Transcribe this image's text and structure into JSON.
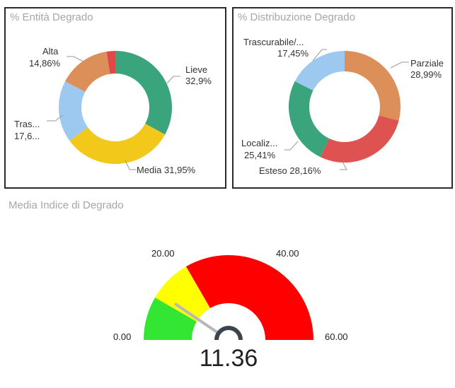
{
  "chart_data": [
    {
      "type": "pie",
      "variant": "donut",
      "title": "% Entità Degrado",
      "slices": [
        {
          "name": "Lieve",
          "value": 32.9,
          "label": "Lieve",
          "value_label": "32,9%",
          "color": "#3aa57c"
        },
        {
          "name": "Media",
          "value": 31.95,
          "label": "Media 31,95%",
          "value_label": "",
          "color": "#f2c81b"
        },
        {
          "name": "Trascurabile",
          "value": 17.6,
          "label": "Tras...",
          "value_label": "17,6...",
          "color": "#9dc9f0"
        },
        {
          "name": "Alta",
          "value": 14.86,
          "label": "Alta",
          "value_label": "14,86%",
          "color": "#dd8f5a"
        },
        {
          "name": "",
          "value": 2.49,
          "label": "",
          "value_label": "",
          "color": "#e0484a"
        }
      ]
    },
    {
      "type": "pie",
      "variant": "donut",
      "title": "% Distribuzione Degrado",
      "slices": [
        {
          "name": "Parziale",
          "value": 28.99,
          "label": "Parziale",
          "value_label": "28,99%",
          "color": "#dd8f5a"
        },
        {
          "name": "Esteso",
          "value": 28.16,
          "label": "Esteso 28,16%",
          "value_label": "",
          "color": "#df5252"
        },
        {
          "name": "Localiz...",
          "value": 25.41,
          "label": "Localiz...",
          "value_label": "25,41%",
          "color": "#3aa57c"
        },
        {
          "name": "Trascurabile/...",
          "value": 17.45,
          "label": "Trascurabile/...",
          "value_label": "17,45%",
          "color": "#9dc9f0"
        }
      ]
    },
    {
      "type": "gauge",
      "title": "Media Indice di Degrado",
      "min": 0,
      "max": 60,
      "min_label": "0.00",
      "max_label": "60.00",
      "tick_labels": [
        {
          "value": 20,
          "label": "20.00"
        },
        {
          "value": 40,
          "label": "40.00"
        }
      ],
      "bands": [
        {
          "from": 0,
          "to": 10,
          "color": "#33e633"
        },
        {
          "from": 10,
          "to": 20,
          "color": "#ffff00"
        },
        {
          "from": 20,
          "to": 60,
          "color": "#ff0000"
        }
      ],
      "value": 11.36,
      "value_label": "11.36"
    }
  ]
}
